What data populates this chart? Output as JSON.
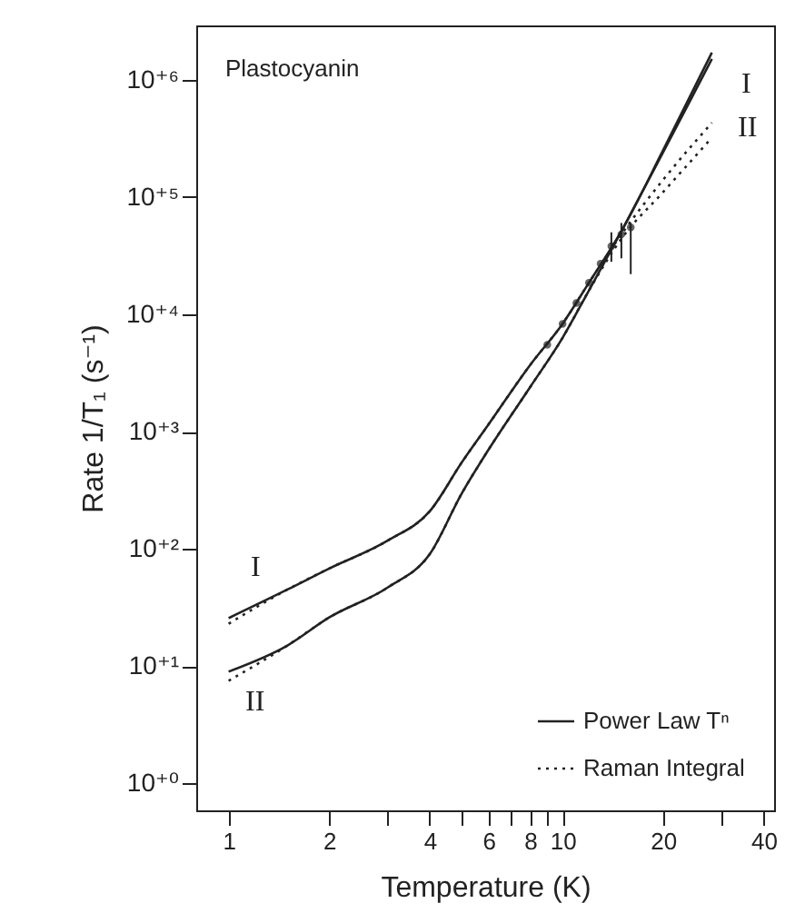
{
  "chart_data": {
    "type": "line",
    "xlabel": "Temperature (K)",
    "ylabel": "Rate 1/T₁ (s⁻¹)",
    "annotations": [
      "Plastocyanin",
      "I",
      "II",
      "I",
      "II"
    ],
    "x": [
      1,
      1.5,
      2,
      3,
      4,
      5,
      6,
      8,
      10,
      12,
      15,
      20,
      28
    ],
    "series": [
      {
        "name": "Power Law Tⁿ",
        "color": "#222222",
        "line_style": "solid",
        "values": [
          25.7,
          45,
          68,
          118,
          209,
          550,
          1150,
          3700,
          8300,
          18600,
          51000,
          250000,
          1700000
        ]
      },
      {
        "color": "#222222",
        "line_style": "solid",
        "values": [
          9,
          15,
          26,
          47,
          90,
          300,
          700,
          2400,
          6300,
          16000,
          51000,
          240000,
          1500000
        ]
      },
      {
        "name": "Raman Integral",
        "color": "#222222",
        "line_style": "dotted",
        "values": [
          23,
          45,
          68,
          118,
          209,
          550,
          1150,
          3700,
          8300,
          18600,
          48000,
          140000,
          430000
        ]
      },
      {
        "color": "#222222",
        "line_style": "dotted",
        "values": [
          7.5,
          15,
          26,
          47,
          90,
          300,
          700,
          2400,
          6300,
          16000,
          44000,
          110000,
          320000
        ]
      },
      {
        "type": "scatter",
        "color": "#222222",
        "marker": "circle",
        "x": [
          9,
          10,
          11,
          12,
          13,
          14,
          15,
          16
        ],
        "values": [
          5500,
          8300,
          12500,
          18600,
          27000,
          38000,
          48000,
          55000
        ],
        "errors": [
          null,
          null,
          null,
          null,
          null,
          [
            28000,
            50000
          ],
          [
            30000,
            60000
          ],
          [
            22000,
            60000
          ]
        ]
      }
    ],
    "log": "xy",
    "xlim": [
      0.8,
      43
    ],
    "ylim": [
      0.59,
      2900000
    ],
    "xticks": [
      1,
      2,
      {
        "value": 3,
        "label": null
      },
      4,
      {
        "value": 5,
        "label": null
      },
      6,
      {
        "value": 7,
        "label": null
      },
      8,
      {
        "value": 9,
        "label": null
      },
      10,
      20,
      {
        "value": 30,
        "label": null
      },
      40
    ],
    "yticks": [
      {
        "value": 1,
        "label": "10⁺⁰"
      },
      {
        "value": 10,
        "label": "10⁺¹"
      },
      {
        "value": 100,
        "label": "10⁺²"
      },
      {
        "value": 1000,
        "label": "10⁺³"
      },
      {
        "value": 10000,
        "label": "10⁺⁴"
      },
      {
        "value": 100000,
        "label": "10⁺⁵"
      },
      {
        "value": 1000000,
        "label": "10⁺⁶"
      }
    ],
    "legend": "bottom right",
    "grid": false
  }
}
